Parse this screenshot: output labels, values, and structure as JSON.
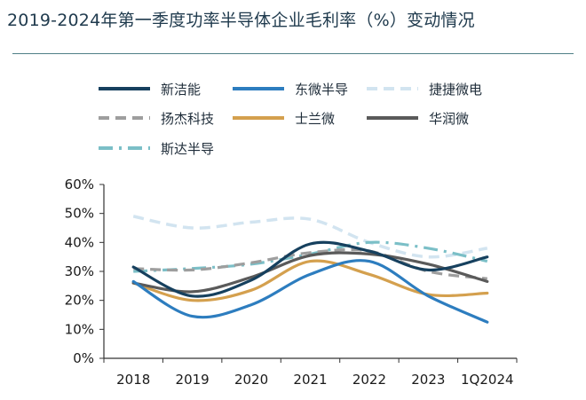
{
  "title": "2019-2024年第一季度功率半导体企业毛利率（%）变动情况",
  "chart_data": {
    "type": "line",
    "title": "2019-2024年第一季度功率半导体企业毛利率（%）变动情况",
    "xlabel": "",
    "ylabel": "",
    "categories": [
      "2018",
      "2019",
      "2020",
      "2021",
      "2022",
      "2023",
      "1Q2024"
    ],
    "ylim": [
      0,
      60
    ],
    "yticks": [
      "0%",
      "10%",
      "20%",
      "30%",
      "40%",
      "50%",
      "60%"
    ],
    "ytick_values": [
      0,
      10,
      20,
      30,
      40,
      50,
      60
    ],
    "grid": false,
    "legend_position": "top",
    "series": [
      {
        "name": "新洁能",
        "values": [
          31.5,
          21.5,
          27.0,
          39.5,
          37.0,
          30.5,
          35.0
        ],
        "color": "#16405e",
        "style": "solid"
      },
      {
        "name": "东微半导",
        "values": [
          26.5,
          14.5,
          18.5,
          29.0,
          33.5,
          21.5,
          12.5
        ],
        "color": "#2d7dbf",
        "style": "solid"
      },
      {
        "name": "捷捷微电",
        "values": [
          49.0,
          45.0,
          47.0,
          48.0,
          40.0,
          35.0,
          38.0
        ],
        "color": "#d2e4f0",
        "style": "dashed"
      },
      {
        "name": "扬杰科技",
        "values": [
          31.0,
          30.5,
          33.0,
          36.5,
          37.0,
          30.0,
          27.5
        ],
        "color": "#9e9e9e",
        "style": "dashed"
      },
      {
        "name": "士兰微",
        "values": [
          26.0,
          20.0,
          23.5,
          33.5,
          29.0,
          22.0,
          22.5
        ],
        "color": "#d4a04e",
        "style": "solid"
      },
      {
        "name": "华润微",
        "values": [
          26.0,
          23.0,
          28.0,
          35.5,
          36.0,
          32.5,
          26.5
        ],
        "color": "#5a5a5a",
        "style": "solid"
      },
      {
        "name": "斯达半导",
        "values": [
          30.0,
          31.0,
          32.5,
          36.0,
          40.0,
          38.0,
          33.5
        ],
        "color": "#7bbfc7",
        "style": "dashdot"
      }
    ]
  }
}
